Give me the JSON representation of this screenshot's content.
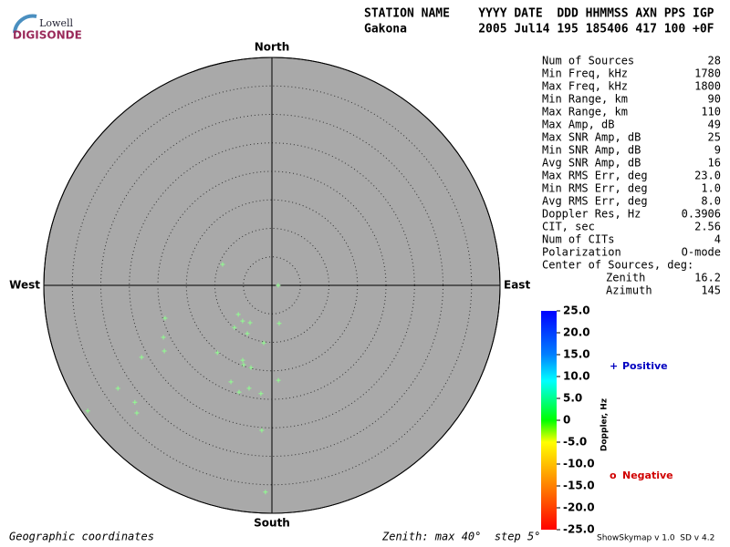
{
  "logo": {
    "top": "Lowell",
    "bottom": "DIGISONDE"
  },
  "header": [
    "STATION NAME    YYYY DATE  DDD HHMMSS AXN PPS IGP",
    "Gakona          2005 Jul14 195 185406 417 100 +0F"
  ],
  "stats": [
    [
      "Num of Sources",
      "28"
    ],
    [
      "Min Freq, kHz",
      "1780"
    ],
    [
      "Max Freq, kHz",
      "1800"
    ],
    [
      "Min Range, km",
      "90"
    ],
    [
      "Max Range, km",
      "110"
    ],
    [
      "Max Amp, dB",
      "49"
    ],
    [
      "Max SNR Amp, dB",
      "25"
    ],
    [
      "Min SNR Amp, dB",
      "9"
    ],
    [
      "Avg SNR Amp, dB",
      "16"
    ],
    [
      "Max RMS Err, deg",
      "23.0"
    ],
    [
      "Min RMS Err, deg",
      "1.0"
    ],
    [
      "Avg RMS Err, deg",
      "8.0"
    ],
    [
      "Doppler Res, Hz",
      "0.3906"
    ],
    [
      "CIT, sec",
      "2.56"
    ],
    [
      "Num of CITs",
      "4"
    ],
    [
      "Polarization",
      "O-mode"
    ],
    [
      "Center of Sources, deg:"
    ],
    [
      "Zenith",
      "16.2"
    ],
    [
      "Azimuth",
      "145"
    ]
  ],
  "colorbar": {
    "label": "Doppler, Hz",
    "lim": [
      -25,
      25
    ],
    "ticks": [
      {
        "value": 25,
        "label": "25.0"
      },
      {
        "value": 20,
        "label": "20.0"
      },
      {
        "value": 15,
        "label": "15.0"
      },
      {
        "value": 10,
        "label": "10.0"
      },
      {
        "value": 5,
        "label": "5.0"
      },
      0,
      {
        "value": -5,
        "label": "-5.0"
      },
      {
        "value": -10,
        "label": "-10.0"
      },
      {
        "value": -15,
        "label": "-15.0"
      },
      {
        "value": -20,
        "label": "-20.0"
      },
      {
        "value": -25,
        "label": "-25.0"
      }
    ]
  },
  "legend": {
    "positive": {
      "symbol": "+",
      "label": "Positive",
      "color": "#0000c0"
    },
    "negative": {
      "symbol": "o",
      "label": "Negative",
      "color": "#d00000"
    }
  },
  "footer": {
    "left": "Geographic coordinates",
    "center": "Zenith: max 40°  step 5°",
    "right": "ShowSkymap v 1.0  SD v 4.2"
  },
  "chart_data": {
    "type": "polar-scatter",
    "directions": {
      "north": "North",
      "south": "South",
      "east": "East",
      "west": "West"
    },
    "rlim": [
      0,
      40
    ],
    "rticks": [
      5,
      10,
      15,
      20,
      25,
      30,
      35,
      40
    ],
    "background": "#a9a9a9",
    "series": [
      {
        "name": "Positive",
        "color": "#90ff90",
        "azimuth": [
          293.1,
          90,
          252.9,
          229.1,
          219.4,
          210.3,
          169.2,
          221.7,
          207,
          244.4,
          188.1,
          238.6,
          219,
          241.1,
          201.3,
          199.6,
          194.3,
          176.1,
          203,
          236.2,
          192.5,
          197.1,
          185.8,
          229.5,
          235.7,
          226.6,
          184,
          181.8
        ],
        "zenith": [
          9.4,
          1.1,
          19.6,
          7.8,
          8.1,
          7.6,
          6.8,
          9.9,
          9.5,
          21.1,
          10.2,
          22.1,
          15.2,
          26.1,
          14.1,
          14.8,
          14.9,
          16.7,
          18.4,
          32.5,
          18.5,
          19.6,
          19.1,
          31.6,
          39.1,
          32.6,
          25.5,
          36.3
        ]
      }
    ]
  }
}
